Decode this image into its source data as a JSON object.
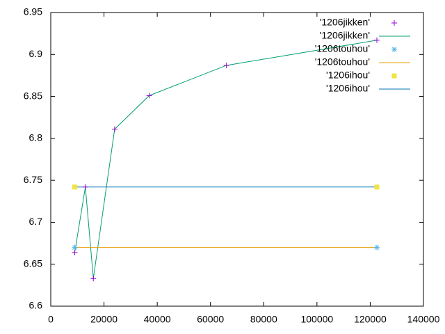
{
  "chart_data": {
    "type": "scatter",
    "xlim": [
      0,
      140000
    ],
    "xticks": [
      0,
      20000,
      40000,
      60000,
      80000,
      100000,
      120000,
      140000
    ],
    "ylim": [
      6.6,
      6.95
    ],
    "yticks": [
      6.6,
      6.65,
      6.7,
      6.75,
      6.8,
      6.85,
      6.9,
      6.95
    ],
    "legend": "top-right",
    "series": [
      {
        "name": "'1206jikken'",
        "mode": "points",
        "marker": "plus",
        "color": "#9400d3",
        "x": [
          9000,
          13000,
          16000,
          24000,
          37000,
          66000,
          122500
        ],
        "values": [
          6.664,
          6.742,
          6.633,
          6.811,
          6.851,
          6.887,
          6.917
        ]
      },
      {
        "name": "'1206jikken'",
        "mode": "lines",
        "color": "#009e73",
        "x": [
          9000,
          13000,
          16000,
          24000,
          37000,
          66000,
          122500
        ],
        "values": [
          6.664,
          6.742,
          6.633,
          6.811,
          6.851,
          6.887,
          6.917
        ]
      },
      {
        "name": "'1206touhou'",
        "mode": "points",
        "marker": "star",
        "color": "#56b4e9",
        "x": [
          9000,
          122500
        ],
        "values": [
          6.67,
          6.67
        ]
      },
      {
        "name": "'1206touhou'",
        "mode": "lines",
        "color": "#e69f00",
        "x": [
          9000,
          122500
        ],
        "values": [
          6.67,
          6.67
        ]
      },
      {
        "name": "'1206ihou'",
        "mode": "points",
        "marker": "square",
        "color": "#f0e442",
        "x": [
          9000,
          122500
        ],
        "values": [
          6.742,
          6.742
        ]
      },
      {
        "name": "'1206ihou'",
        "mode": "lines",
        "color": "#0072b2",
        "x": [
          9000,
          122500
        ],
        "values": [
          6.742,
          6.742
        ]
      }
    ]
  }
}
